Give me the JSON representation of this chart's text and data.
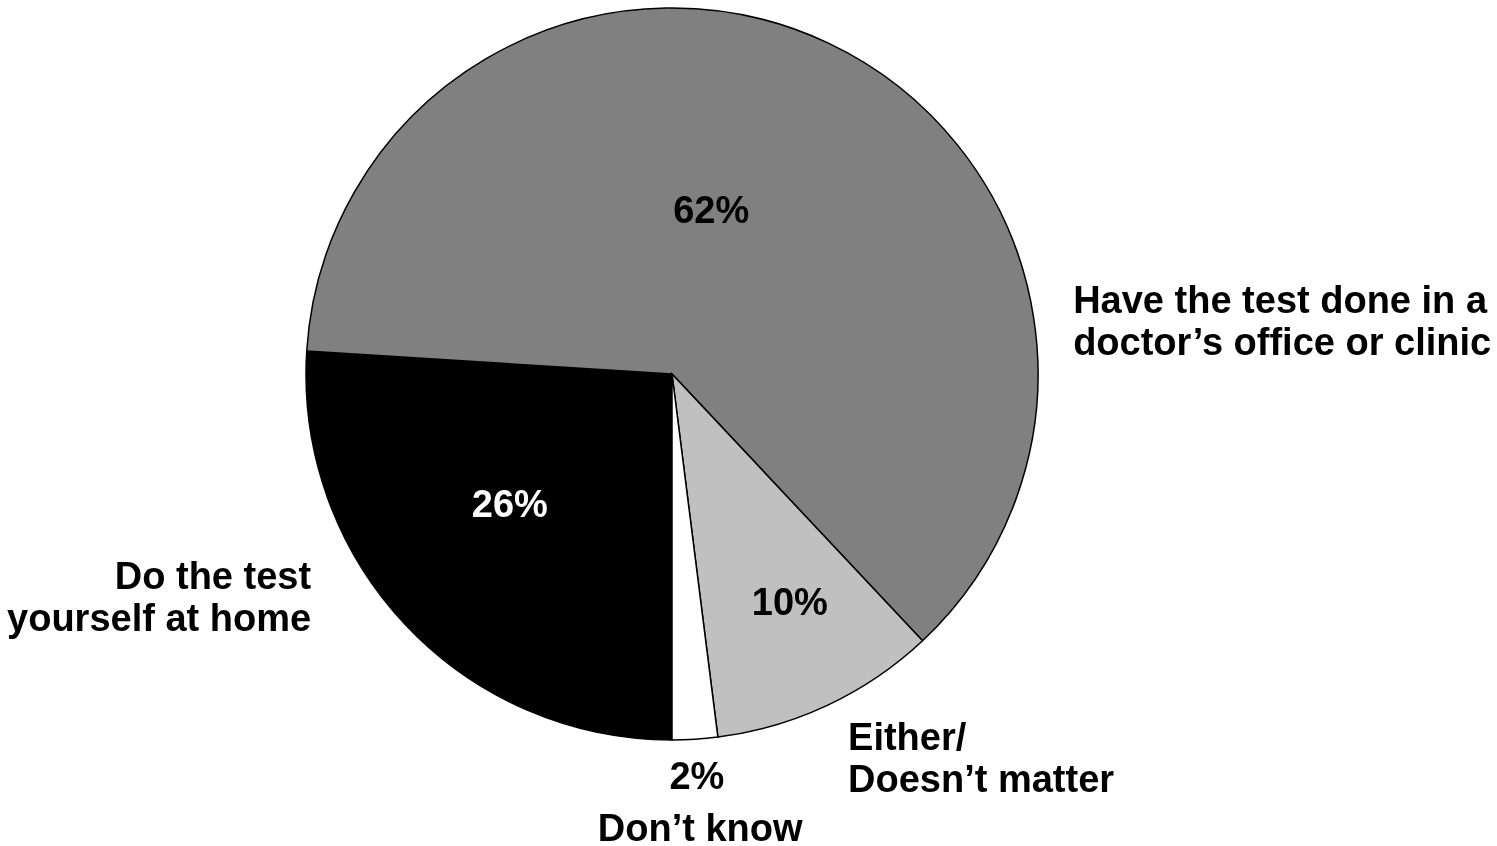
{
  "chart_data": {
    "type": "pie",
    "categories": [
      "Do the test\nyourself at home",
      "Have the test done in a\ndoctor’s office or clinic",
      "Either/\nDoesn’t matter",
      "Don’t know"
    ],
    "values": [
      26,
      62,
      10,
      2
    ],
    "value_labels": [
      "26%",
      "62%",
      "10%",
      "2%"
    ],
    "colors": [
      "#000000",
      "#808080",
      "#c0c0c0",
      "#ffffff"
    ]
  }
}
